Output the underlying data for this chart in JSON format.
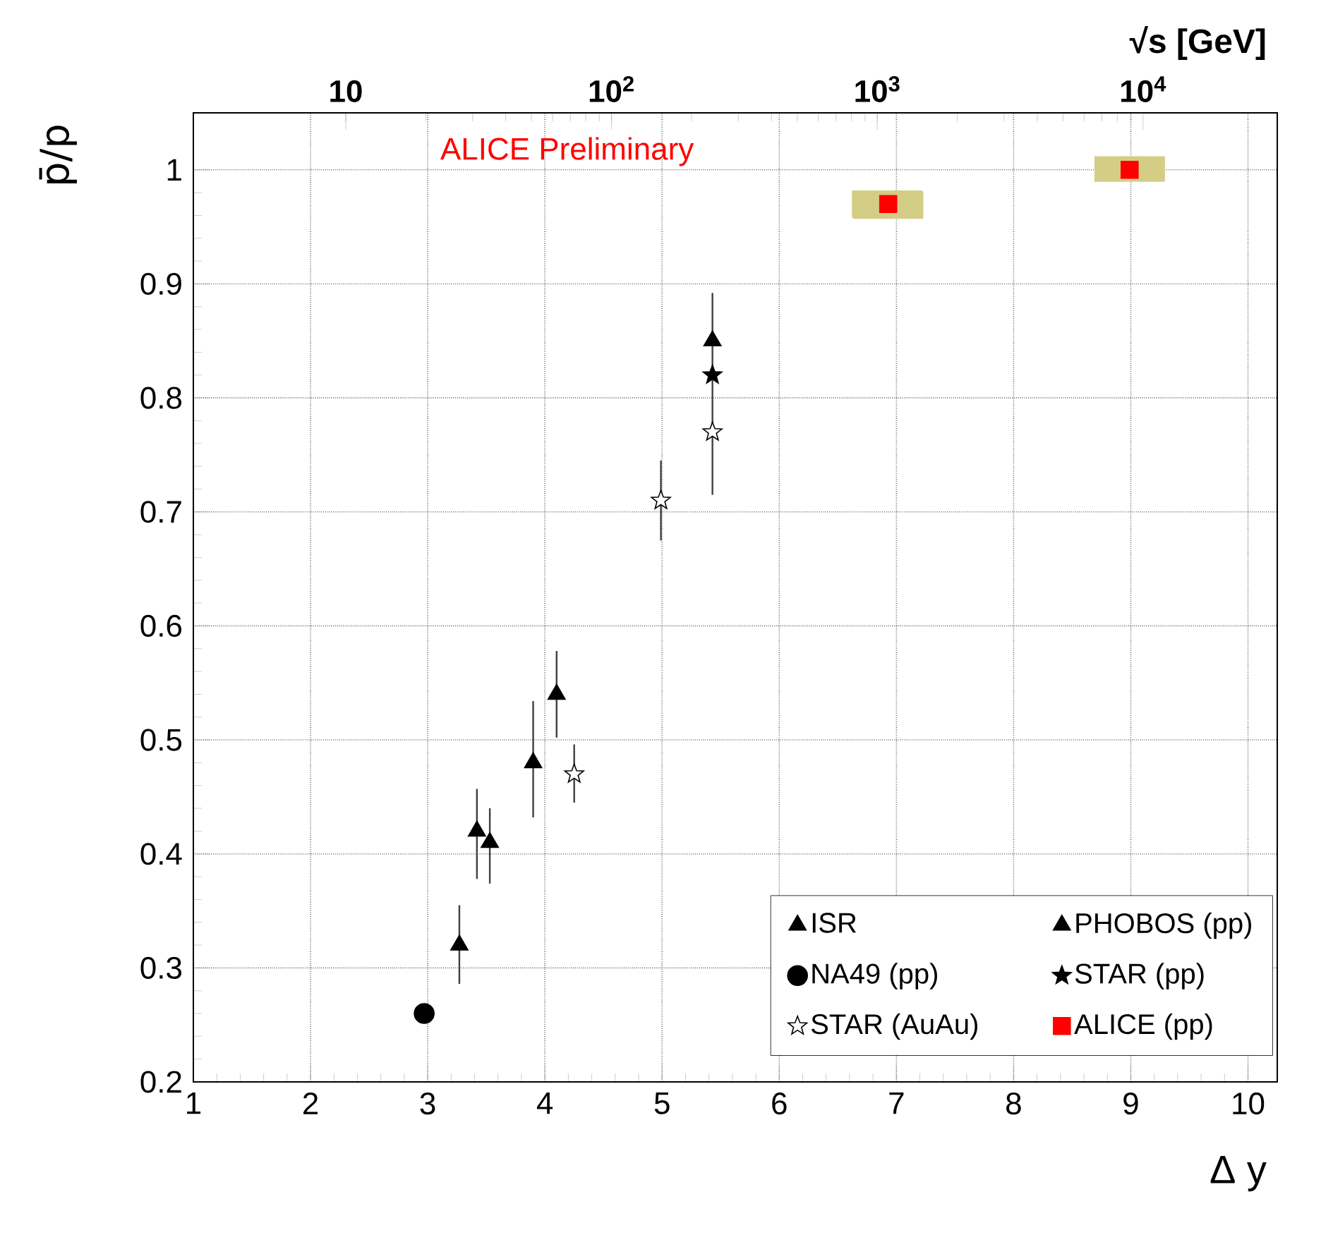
{
  "chart_data": {
    "type": "scatter",
    "xlabel": "Δ y",
    "ylabel": "p̄/p",
    "x2label": "√s [GeV]",
    "annotations": [
      "ALICE Preliminary"
    ],
    "xlim": [
      1,
      10.25
    ],
    "ylim": [
      0.2,
      1.05
    ],
    "xticks": [
      1,
      2,
      3,
      4,
      5,
      6,
      7,
      8,
      9,
      10
    ],
    "yticks": [
      0.2,
      0.3,
      0.4,
      0.5,
      0.6,
      0.7,
      0.8,
      0.9,
      1
    ],
    "x2lim": [
      2.67,
      32000
    ],
    "x2ticks": [
      10,
      {
        "value": 100,
        "label": "10$^{2}$"
      },
      {
        "value": 1000,
        "label": "10$^{3}$"
      },
      {
        "value": 10000,
        "label": "10$^{4}$"
      }
    ],
    "log": "x2",
    "grid": true,
    "legend": "bottom right",
    "series": [
      {
        "name": "ISR",
        "color": "#000000",
        "marker": "triangle",
        "x": [
          3.27,
          3.42,
          3.53,
          3.9,
          4.1
        ],
        "values": [
          0.32,
          0.42,
          0.41,
          0.48,
          0.54
        ],
        "errors": [
          [
            0.286,
            0.355
          ],
          [
            0.378,
            0.457
          ],
          [
            0.374,
            0.44
          ],
          [
            0.432,
            0.534
          ],
          [
            0.502,
            0.578
          ]
        ]
      },
      {
        "name": "PHOBOS (pp)",
        "color": "#000000",
        "marker": "triangle",
        "x": [
          5.43
        ],
        "values": [
          0.85
        ]
      },
      {
        "name": "NA49 (pp)",
        "color": "#000000",
        "marker": "circle",
        "x": [
          2.97
        ],
        "values": [
          0.26
        ]
      },
      {
        "name": "STAR (pp)",
        "color": "#000000",
        "marker": "star",
        "x": [
          5.43
        ],
        "values": [
          0.82
        ]
      },
      {
        "name": "STAR (AuAu)",
        "color": "#ffffff",
        "marker": "star",
        "x": [
          4.25,
          4.99,
          5.43
        ],
        "values": [
          0.47,
          0.71,
          0.77
        ],
        "errors": [
          [
            0.445,
            0.496
          ],
          [
            0.675,
            0.745
          ],
          [
            0.715,
            0.892
          ]
        ]
      },
      {
        "name": "ALICE (pp)",
        "color": "#ff0000",
        "marker": "square",
        "x": [
          6.93,
          8.99
        ],
        "values": [
          0.97,
          1.0
        ],
        "errors": [
          [
            0.957,
            0.981
          ],
          [
            0.991,
            1.012
          ]
        ],
        "xerrors": [
          [
            6.62,
            7.22
          ],
          [
            8.69,
            9.29
          ]
        ]
      }
    ]
  }
}
